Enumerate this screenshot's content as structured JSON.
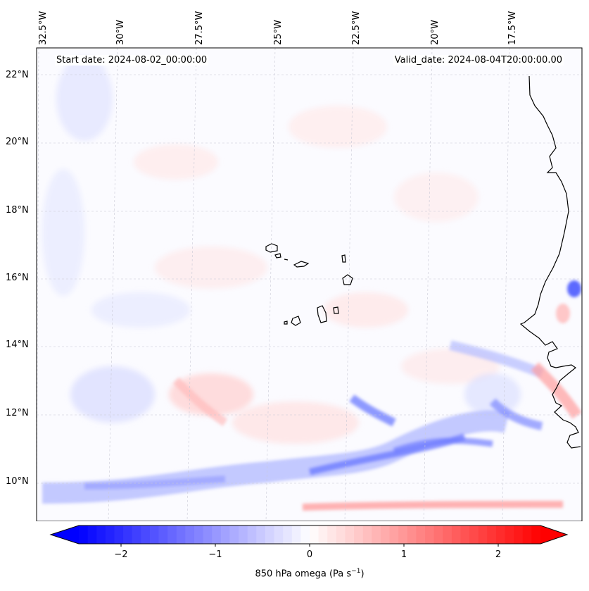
{
  "header": {
    "start_date": "Start date: 2024-08-02_00:00:00",
    "valid_date": "Valid_date: 2024-08-04T20:00:00.00"
  },
  "axes": {
    "lon_labels": [
      "32.5°W",
      "30°W",
      "27.5°W",
      "25°W",
      "22.5°W",
      "20°W",
      "17.5°W"
    ],
    "lat_labels": [
      "22°N",
      "20°N",
      "18°N",
      "16°N",
      "14°N",
      "12°N",
      "10°N"
    ]
  },
  "colorbar": {
    "ticks": [
      "−2",
      "−1",
      "0",
      "1",
      "2"
    ],
    "title_main": "850 hPa omega (Pa s",
    "title_sup": "−1",
    "title_end": ")",
    "min": -2.7,
    "max": 2.7,
    "colors": {
      "negative": "#0000ff",
      "neutral": "#ffffff",
      "positive": "#ff0000"
    }
  },
  "map": {
    "land_outline_color": "#000000",
    "features": [
      "cape-verde-islands",
      "west-africa-coastline"
    ]
  }
}
